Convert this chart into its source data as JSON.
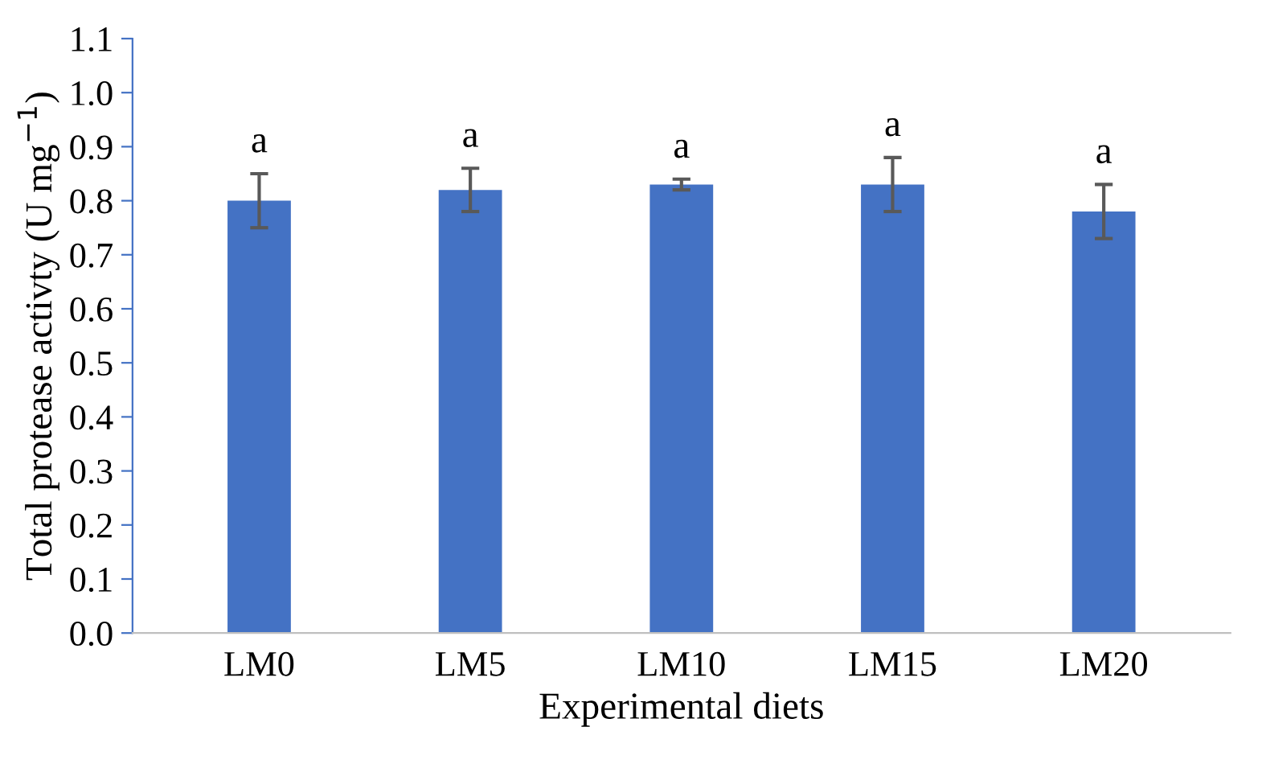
{
  "chart_data": {
    "type": "bar",
    "xlabel": "Experimental diets",
    "ylabel": "Total protease activty (U mg$^{−1}$)",
    "categories": [
      "LM0",
      "LM5",
      "LM10",
      "LM15",
      "LM20"
    ],
    "values": [
      0.8,
      0.82,
      0.83,
      0.83,
      0.78
    ],
    "errors": [
      0.05,
      0.04,
      0.01,
      0.05,
      0.05
    ],
    "color": "#4472c4",
    "ylim": [
      0,
      1.1
    ],
    "yticks": [
      {
        "value": 0,
        "label": "0.0"
      },
      {
        "value": 0.1,
        "label": "0.1"
      },
      {
        "value": 0.2,
        "label": "0.2"
      },
      {
        "value": 0.3,
        "label": "0.3"
      },
      {
        "value": 0.4,
        "label": "0.4"
      },
      {
        "value": 0.5,
        "label": "0.5"
      },
      {
        "value": 0.6,
        "label": "0.6"
      },
      {
        "value": 0.7,
        "label": "0.7"
      },
      {
        "value": 0.8,
        "label": "0.8"
      },
      {
        "value": 0.9,
        "label": "0.9"
      },
      {
        "value": 1.0,
        "label": "1.0"
      },
      {
        "value": 1.1,
        "label": "1.1"
      }
    ],
    "annotations": [
      {
        "text": "a",
        "x": "LM0",
        "y": 0.85
      },
      {
        "text": "a",
        "x": "LM5",
        "y": 0.86
      },
      {
        "text": "a",
        "x": "LM10",
        "y": 0.84
      },
      {
        "text": "a",
        "x": "LM15",
        "y": 0.88
      },
      {
        "text": "a",
        "x": "LM20",
        "y": 0.83
      }
    ],
    "grid": false,
    "legend": false
  }
}
